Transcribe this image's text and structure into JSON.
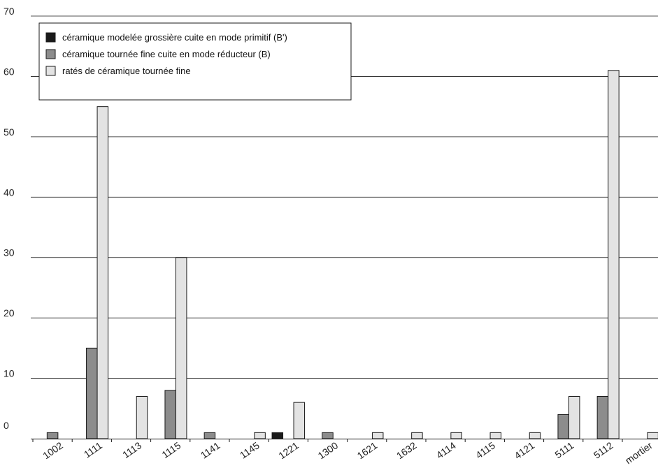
{
  "chart_data": {
    "type": "bar",
    "title": "",
    "xlabel": "",
    "ylabel": "",
    "ylim": [
      0,
      70
    ],
    "yticks": [
      0,
      10,
      20,
      30,
      40,
      50,
      60,
      70
    ],
    "grid": true,
    "legend_position": "top-left",
    "categories": [
      "1002",
      "1111",
      "1113",
      "1115",
      "1141",
      "1145",
      "1221",
      "1300",
      "1621",
      "1632",
      "4114",
      "4115",
      "4121",
      "5111",
      "5112",
      "mortier"
    ],
    "series": [
      {
        "name": "céramique modelée grossière cuite en mode primitif (B')",
        "color": "#1a1a1a",
        "values": [
          0,
          0,
          0,
          0,
          0,
          0,
          1,
          0,
          0,
          0,
          0,
          0,
          0,
          0,
          0,
          0
        ]
      },
      {
        "name": "céramique tournée fine cuite en mode réducteur (B)",
        "color": "#8c8c8c",
        "values": [
          1,
          15,
          0,
          8,
          1,
          0,
          0,
          1,
          0,
          0,
          0,
          0,
          0,
          4,
          7,
          0
        ]
      },
      {
        "name": "ratés de céramique tournée fine",
        "color": "#e3e3e3",
        "values": [
          0,
          55,
          7,
          30,
          0,
          1,
          6,
          0,
          1,
          1,
          1,
          1,
          1,
          7,
          61,
          1
        ]
      }
    ]
  }
}
